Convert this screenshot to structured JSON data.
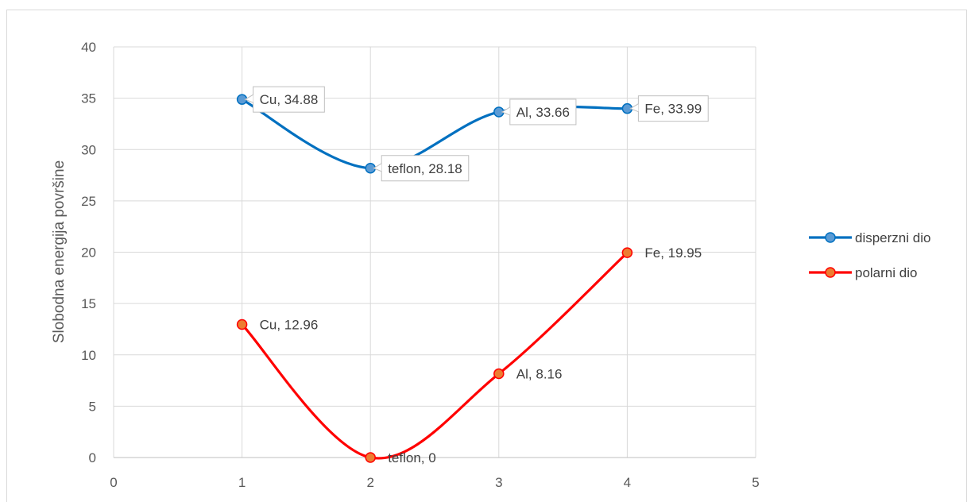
{
  "chart_data": {
    "type": "line",
    "title": "",
    "xlabel": "",
    "ylabel": "Slobodna energija površine",
    "xlim": [
      0,
      5
    ],
    "ylim": [
      0,
      40
    ],
    "x_ticks": [
      "0",
      "1",
      "2",
      "3",
      "4",
      "5"
    ],
    "y_ticks": [
      "0",
      "5",
      "10",
      "15",
      "20",
      "25",
      "30",
      "35",
      "40"
    ],
    "grid": true,
    "smooth": true,
    "legend_position": "right",
    "series": [
      {
        "name": "disperzni dio",
        "color": "#0070c0",
        "marker_color": "#5b9bd5",
        "labels_boxed": true,
        "points": [
          {
            "x": 1,
            "y": 34.88,
            "label": "Cu, 34.88"
          },
          {
            "x": 2,
            "y": 28.18,
            "label": "teflon, 28.18"
          },
          {
            "x": 3,
            "y": 33.66,
            "label": "Al, 33.66"
          },
          {
            "x": 4,
            "y": 33.99,
            "label": "Fe, 33.99"
          }
        ]
      },
      {
        "name": "polarni dio",
        "color": "#ff0000",
        "marker_color": "#ed7d31",
        "labels_boxed": false,
        "points": [
          {
            "x": 1,
            "y": 12.96,
            "label": "Cu, 12.96"
          },
          {
            "x": 2,
            "y": 0,
            "label": "teflon, 0"
          },
          {
            "x": 3,
            "y": 8.16,
            "label": "Al, 8.16"
          },
          {
            "x": 4,
            "y": 19.95,
            "label": "Fe, 19.95"
          }
        ]
      }
    ]
  }
}
